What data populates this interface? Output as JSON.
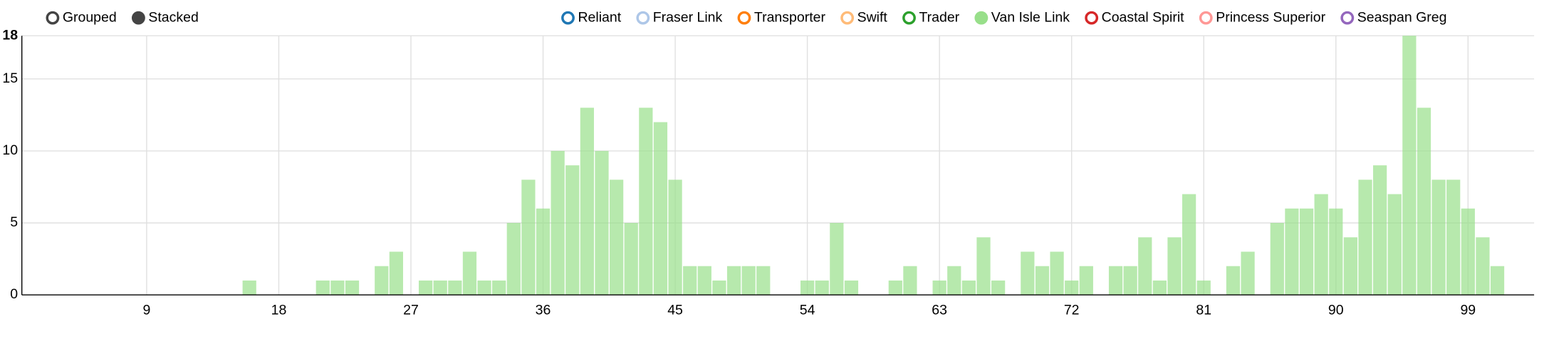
{
  "controls": {
    "options": [
      "Grouped",
      "Stacked"
    ],
    "selected": "Stacked"
  },
  "chart_data": {
    "type": "bar",
    "stacked": true,
    "legend_items": [
      {
        "name": "Reliant",
        "color": "#1f77b4",
        "active": false
      },
      {
        "name": "Fraser Link",
        "color": "#aec7e8",
        "active": false
      },
      {
        "name": "Transporter",
        "color": "#ff7f0e",
        "active": false
      },
      {
        "name": "Swift",
        "color": "#ffbb78",
        "active": false
      },
      {
        "name": "Trader",
        "color": "#2ca02c",
        "active": false
      },
      {
        "name": "Van Isle Link",
        "color": "#98df8a",
        "active": true
      },
      {
        "name": "Coastal Spirit",
        "color": "#d62728",
        "active": false
      },
      {
        "name": "Princess Superior",
        "color": "#ff9896",
        "active": false
      },
      {
        "name": "Seaspan Greg",
        "color": "#9467bd",
        "active": false
      }
    ],
    "x": [
      16,
      21,
      22,
      23,
      25,
      26,
      28,
      29,
      30,
      31,
      32,
      33,
      34,
      35,
      36,
      37,
      38,
      39,
      40,
      41,
      42,
      43,
      44,
      45,
      46,
      47,
      48,
      49,
      50,
      51,
      54,
      55,
      56,
      57,
      60,
      61,
      63,
      64,
      65,
      66,
      67,
      69,
      70,
      71,
      72,
      73,
      75,
      76,
      77,
      78,
      79,
      80,
      81,
      83,
      84,
      86,
      87,
      88,
      89,
      90,
      91,
      92,
      93,
      94,
      95,
      96,
      97,
      98,
      99,
      100,
      101
    ],
    "series": [
      {
        "name": "Van Isle Link",
        "color": "#98df8a",
        "values": [
          1,
          1,
          1,
          1,
          2,
          3,
          1,
          1,
          1,
          3,
          1,
          1,
          5,
          8,
          6,
          10,
          9,
          13,
          10,
          8,
          5,
          13,
          12,
          8,
          2,
          2,
          1,
          2,
          2,
          2,
          1,
          1,
          5,
          1,
          1,
          2,
          1,
          2,
          1,
          4,
          1,
          3,
          2,
          3,
          1,
          2,
          2,
          2,
          4,
          1,
          4,
          7,
          1,
          2,
          3,
          5,
          6,
          6,
          7,
          6,
          4,
          8,
          9,
          7,
          18,
          13,
          8,
          8,
          6,
          4,
          2
        ]
      }
    ],
    "xlim": [
      0.5,
      103.5
    ],
    "xticks": [
      9,
      18,
      27,
      36,
      45,
      54,
      63,
      72,
      81,
      90,
      99
    ],
    "ylim": [
      0,
      18
    ],
    "yticks": [
      0,
      5,
      10,
      15,
      18
    ],
    "grid": true
  }
}
